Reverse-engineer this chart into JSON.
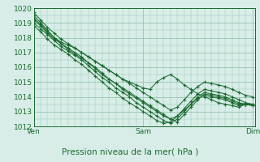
{
  "bg_color": "#d8ede8",
  "grid_color": "#a0c8b8",
  "line_color": "#1a6b30",
  "xlabel": "Pression niveau de la mer( hPa )",
  "xlabel_fontsize": 7.5,
  "tick_label_fontsize": 6.5,
  "day_labels": [
    "Ven",
    "Sam",
    "Dim"
  ],
  "day_positions": [
    0,
    48,
    96
  ],
  "xlim": [
    0,
    97
  ],
  "ylim": [
    1012,
    1020
  ],
  "yticks": [
    1012,
    1013,
    1014,
    1015,
    1016,
    1017,
    1018,
    1019,
    1020
  ],
  "series": [
    {
      "x": [
        0,
        3,
        6,
        9,
        12,
        15,
        18,
        21,
        24,
        27,
        30,
        33,
        36,
        39,
        42,
        45,
        48,
        51,
        54,
        57,
        60,
        63,
        66,
        69,
        72,
        75,
        78,
        81,
        84,
        87,
        90,
        93,
        96
      ],
      "y": [
        1019.5,
        1019.0,
        1018.5,
        1018.0,
        1017.7,
        1017.5,
        1017.3,
        1017.0,
        1016.7,
        1016.4,
        1016.1,
        1015.8,
        1015.5,
        1015.2,
        1015.0,
        1014.8,
        1014.6,
        1014.5,
        1015.0,
        1015.3,
        1015.5,
        1015.2,
        1014.8,
        1014.5,
        1014.2,
        1014.0,
        1013.8,
        1013.6,
        1013.5,
        1013.4,
        1013.3,
        1013.5,
        1013.5
      ]
    },
    {
      "x": [
        0,
        3,
        6,
        9,
        12,
        15,
        18,
        21,
        24,
        27,
        30,
        33,
        36,
        39,
        42,
        45,
        48,
        51,
        54,
        57,
        60,
        63,
        66,
        69,
        72,
        75,
        78,
        81,
        84,
        87,
        90,
        93,
        96
      ],
      "y": [
        1019.2,
        1018.8,
        1018.3,
        1017.9,
        1017.6,
        1017.3,
        1017.0,
        1016.7,
        1016.3,
        1016.0,
        1015.6,
        1015.2,
        1014.9,
        1014.5,
        1014.2,
        1013.9,
        1013.6,
        1013.3,
        1013.0,
        1012.7,
        1012.5,
        1012.3,
        1012.8,
        1013.3,
        1013.8,
        1014.2,
        1014.1,
        1014.0,
        1013.9,
        1013.7,
        1013.5,
        1013.5,
        1013.4
      ]
    },
    {
      "x": [
        0,
        3,
        6,
        9,
        12,
        15,
        18,
        21,
        24,
        27,
        30,
        33,
        36,
        39,
        42,
        45,
        48,
        51,
        54,
        57,
        60,
        63,
        66,
        69,
        72,
        75,
        78,
        81,
        84,
        87,
        90,
        93,
        96
      ],
      "y": [
        1018.8,
        1018.4,
        1017.9,
        1017.5,
        1017.2,
        1016.9,
        1016.5,
        1016.2,
        1015.8,
        1015.4,
        1015.0,
        1014.6,
        1014.3,
        1013.9,
        1013.6,
        1013.3,
        1013.0,
        1012.7,
        1012.4,
        1012.2,
        1012.3,
        1012.7,
        1013.1,
        1013.5,
        1013.9,
        1014.1,
        1014.0,
        1013.9,
        1013.8,
        1013.6,
        1013.4,
        1013.5,
        1013.5
      ]
    },
    {
      "x": [
        0,
        3,
        6,
        9,
        12,
        15,
        18,
        21,
        24,
        27,
        30,
        33,
        36,
        39,
        42,
        45,
        48,
        51,
        54,
        57,
        60,
        63,
        66,
        69,
        72,
        75,
        78,
        81,
        84,
        87,
        90,
        93,
        96
      ],
      "y": [
        1019.0,
        1018.6,
        1018.2,
        1017.8,
        1017.4,
        1017.1,
        1016.8,
        1016.5,
        1016.1,
        1015.7,
        1015.3,
        1015.0,
        1014.6,
        1014.3,
        1014.0,
        1013.6,
        1013.3,
        1013.0,
        1012.7,
        1012.4,
        1012.2,
        1012.5,
        1013.0,
        1013.5,
        1014.0,
        1014.3,
        1014.2,
        1014.1,
        1014.0,
        1013.8,
        1013.6,
        1013.5,
        1013.4
      ]
    },
    {
      "x": [
        0,
        3,
        6,
        9,
        12,
        15,
        18,
        21,
        24,
        27,
        30,
        33,
        36,
        39,
        42,
        45,
        48,
        51,
        54,
        57,
        60,
        63,
        66,
        69,
        72,
        75,
        78,
        81,
        84,
        87,
        90,
        93,
        96
      ],
      "y": [
        1019.3,
        1018.9,
        1018.4,
        1018.0,
        1017.6,
        1017.2,
        1016.9,
        1016.6,
        1016.3,
        1015.9,
        1015.5,
        1015.2,
        1014.9,
        1014.6,
        1014.3,
        1014.0,
        1013.7,
        1013.4,
        1013.1,
        1012.8,
        1012.5,
        1012.7,
        1013.2,
        1013.7,
        1014.2,
        1014.5,
        1014.4,
        1014.3,
        1014.2,
        1014.0,
        1013.8,
        1013.6,
        1013.5
      ]
    },
    {
      "x": [
        0,
        3,
        6,
        9,
        12,
        15,
        18,
        21,
        24,
        27,
        30,
        33,
        36,
        39,
        42,
        45,
        48,
        51,
        54,
        57,
        60,
        63,
        66,
        69,
        72,
        75,
        78,
        81,
        84,
        87,
        90,
        93,
        96
      ],
      "y": [
        1019.7,
        1019.2,
        1018.7,
        1018.3,
        1017.9,
        1017.6,
        1017.3,
        1017.0,
        1016.7,
        1016.4,
        1016.1,
        1015.8,
        1015.5,
        1015.2,
        1014.9,
        1014.6,
        1014.3,
        1014.0,
        1013.7,
        1013.4,
        1013.1,
        1013.3,
        1013.8,
        1014.3,
        1014.7,
        1015.0,
        1014.9,
        1014.8,
        1014.7,
        1014.5,
        1014.3,
        1014.1,
        1014.0
      ]
    }
  ]
}
